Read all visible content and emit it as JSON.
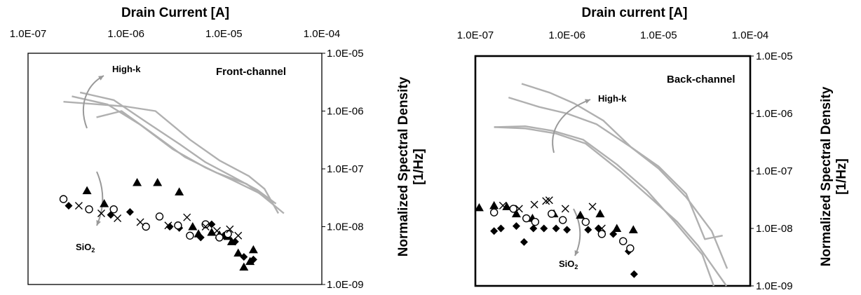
{
  "chart_data": [
    {
      "type": "scatter",
      "panel_label": "Front-channel",
      "xlabel": "Drain Current [A]",
      "ylabel_line1": "Normalized Spectral Density",
      "ylabel_line2": "[1/Hz]",
      "x_scale": "log",
      "y_scale": "log",
      "xlim": [
        1e-07,
        0.0001
      ],
      "ylim": [
        1e-09,
        1e-05
      ],
      "x_ticks": [
        "1.0E-07",
        "1.0E-06",
        "1.0E-05",
        "1.0E-04"
      ],
      "y_ticks": [
        "1.0E-05",
        "1.0E-06",
        "1.0E-07",
        "1.0E-08",
        "1.0E-09"
      ],
      "annotations": {
        "high_k": "High-k",
        "sio2_main": "SiO",
        "sio2_sub": "2"
      },
      "colors": {
        "highk_lines": "#b0b0b0",
        "arrow": "#999999",
        "markers": "#000000"
      },
      "high_k_lines": [
        {
          "x": [
            2.3e-07,
            1e-06,
            2e-06,
            4.5e-06,
            9e-06,
            1.8e-05,
            2.6e-05,
            3.6e-05
          ],
          "y": [
            1.45e-06,
            1.2e-06,
            1e-06,
            3.2e-07,
            1.4e-07,
            7.5e-08,
            4.5e-08,
            1.7e-08
          ]
        },
        {
          "x": [
            3.4e-07,
            7.5e-07,
            1.6e-06,
            3.5e-06,
            6.5e-06,
            1.2e-05,
            2.2e-05,
            3.4e-05
          ],
          "y": [
            2.1e-06,
            1.55e-06,
            6.5e-07,
            2.7e-07,
            1.3e-07,
            7.5e-08,
            4.3e-08,
            2.5e-08
          ]
        },
        {
          "x": [
            2.8e-07,
            6.5e-07,
            1.4e-06,
            3e-06,
            6.5e-06,
            1.2e-05,
            2.3e-05,
            4.1e-05
          ],
          "y": [
            1.8e-06,
            1.3e-06,
            5.8e-07,
            2.2e-07,
            1.05e-07,
            6.5e-08,
            3.8e-08,
            1.7e-08
          ]
        },
        {
          "x": [
            5e-07,
            9e-07,
            1.8e-06,
            4e-06,
            8.5e-06,
            1.7e-05,
            3.1e-05
          ],
          "y": [
            7.8e-07,
            1e-06,
            4.3e-07,
            1.6e-07,
            8.5e-08,
            5.5e-08,
            2.6e-08
          ]
        }
      ],
      "series": [
        {
          "name": "",
          "marker": "triangle",
          "x": [
            4e-07,
            6e-07,
            1.3e-06,
            2.1e-06,
            3.5e-06,
            4.8e-06,
            5.5e-06,
            7.5e-06,
            9e-06,
            1.1e-05,
            1.2e-05,
            1.4e-05,
            1.6e-05,
            1.85e-05,
            2e-05
          ],
          "y": [
            4.2e-08,
            2.5e-08,
            5.8e-08,
            5.8e-08,
            4e-08,
            1e-08,
            7.5e-09,
            8e-09,
            7.2e-09,
            6.8e-09,
            5.5e-09,
            3.5e-09,
            2e-09,
            2.5e-09,
            4e-09
          ]
        },
        {
          "name": "",
          "marker": "diamond",
          "x": [
            2.6e-07,
            7e-07,
            1.1e-06,
            2.8e-06,
            3.5e-06,
            5.8e-06,
            7.5e-06,
            1e-05,
            1.3e-05,
            1.6e-05,
            2e-05
          ],
          "y": [
            2.3e-08,
            1.6e-08,
            1.8e-08,
            1e-08,
            9.5e-09,
            6.5e-09,
            1.1e-08,
            7e-09,
            5.5e-09,
            3e-09,
            2.7e-09
          ]
        },
        {
          "name": "",
          "marker": "circle",
          "x": [
            2.3e-07,
            4.2e-07,
            7.5e-07,
            1.6e-06,
            2.2e-06,
            3.4e-06,
            4.5e-06,
            6.5e-06,
            9e-06,
            1.1e-05
          ],
          "y": [
            3e-08,
            2e-08,
            2e-08,
            1e-08,
            1.5e-08,
            1.05e-08,
            7e-09,
            1.1e-08,
            6.5e-09,
            7.5e-09
          ]
        },
        {
          "name": "",
          "marker": "cross",
          "x": [
            3.3e-07,
            5.6e-07,
            8.2e-07,
            1.4e-06,
            2.7e-06,
            4.2e-06,
            6.5e-06,
            8.5e-06,
            1.15e-05,
            1.4e-05
          ],
          "y": [
            2.3e-08,
            1.7e-08,
            1.4e-08,
            1.2e-08,
            1.05e-08,
            1.45e-08,
            1e-08,
            8.5e-09,
            9e-09,
            7e-09
          ]
        }
      ]
    },
    {
      "type": "scatter",
      "panel_label": "Back-channel",
      "xlabel": "Drain current [A]",
      "ylabel_line1": "Normalized Spectral Density",
      "ylabel_line2": "[1/Hz]",
      "x_scale": "log",
      "y_scale": "log",
      "xlim": [
        1e-07,
        0.0001
      ],
      "ylim": [
        1e-09,
        1e-05
      ],
      "x_ticks": [
        "1.0E-07",
        "1.0E-06",
        "1.0E-05",
        "1.0E-04"
      ],
      "y_ticks": [
        "1.0E-05",
        "1.0E-06",
        "1.0E-07",
        "1.0E-08",
        "1.0E-09"
      ],
      "annotations": {
        "high_k": "High-k",
        "sio2_main": "SiO",
        "sio2_sub": "2"
      },
      "colors": {
        "highk_lines": "#b0b0b0",
        "arrow": "#999999",
        "markers": "#000000"
      },
      "high_k_lines": [
        {
          "x": [
            3.2e-07,
            6.5e-07,
            1.2e-06,
            2.5e-06,
            5e-06,
            1e-05,
            2e-05,
            3.8e-05,
            5.6e-05
          ],
          "y": [
            3.3e-06,
            2.3e-06,
            1.5e-06,
            7.5e-07,
            2.6e-07,
            1.1e-07,
            3.5e-08,
            9e-09,
            2e-09
          ]
        },
        {
          "x": [
            2.3e-07,
            5e-07,
            1e-06,
            2.1e-06,
            5e-06,
            1e-05,
            2e-05,
            3.2e-05,
            5e-05
          ],
          "y": [
            1.9e-06,
            1.3e-06,
            1e-06,
            6.5e-07,
            2.6e-07,
            1.2e-07,
            4e-08,
            6.5e-09,
            7.5e-09
          ]
        },
        {
          "x": [
            1.6e-07,
            3.5e-07,
            7e-07,
            1.5e-06,
            3.5e-06,
            7.5e-06,
            1.5e-05,
            3e-05,
            4e-05
          ],
          "y": [
            5.8e-07,
            6e-07,
            5e-07,
            3.5e-07,
            1.3e-07,
            4.5e-08,
            1.3e-08,
            3.5e-09,
            1e-09
          ]
        },
        {
          "x": [
            1.6e-07,
            3.5e-07,
            7.5e-07,
            1.6e-06,
            3.8e-06,
            8e-06,
            1.6e-05,
            2.7e-05,
            5.5e-05
          ],
          "y": [
            5.8e-07,
            5.5e-07,
            4.5e-07,
            3e-07,
            1e-07,
            3.5e-08,
            1.3e-08,
            5e-09,
            1e-09
          ]
        }
      ],
      "series": [
        {
          "name": "",
          "marker": "triangle",
          "x": [
            1.1e-07,
            1.6e-07,
            2.2e-07,
            2.8e-07,
            4.2e-07,
            7.2e-07,
            1.4e-06,
            2.3e-06,
            3.5e-06,
            5.3e-06
          ],
          "y": [
            2.3e-08,
            2.5e-08,
            2.4e-08,
            1.8e-08,
            1.5e-08,
            1.8e-08,
            1.7e-08,
            1.8e-08,
            1e-08,
            9.5e-09
          ]
        },
        {
          "name": "",
          "marker": "diamond",
          "x": [
            1.6e-07,
            1.9e-07,
            2.8e-07,
            3.4e-07,
            4.3e-07,
            5.6e-07,
            7.6e-07,
            1e-06,
            1.7e-06,
            2.2e-06,
            3.2e-06,
            4.7e-06,
            5.4e-06
          ],
          "y": [
            9e-09,
            1e-08,
            1.1e-08,
            5.8e-09,
            1e-08,
            1e-08,
            1e-08,
            9.5e-09,
            9.5e-09,
            1e-08,
            8e-09,
            4e-09,
            1.6e-09
          ]
        },
        {
          "name": "",
          "marker": "circle",
          "x": [
            1.6e-07,
            2.6e-07,
            3.6e-07,
            4.5e-07,
            6.8e-07,
            9e-07,
            1.6e-06,
            2.4e-06,
            4.1e-06,
            4.9e-06
          ],
          "y": [
            1.9e-08,
            2.2e-08,
            1.5e-08,
            1.3e-08,
            1.8e-08,
            1.4e-08,
            1.3e-08,
            8e-09,
            6e-09,
            4.5e-09
          ]
        },
        {
          "name": "",
          "marker": "cross",
          "x": [
            2e-07,
            3e-07,
            4.4e-07,
            5.9e-07,
            6.4e-07,
            9.6e-07,
            1.9e-06,
            2.4e-06
          ],
          "y": [
            2.5e-08,
            2.2e-08,
            2.6e-08,
            3e-08,
            3.1e-08,
            2.2e-08,
            2.4e-08,
            1e-08
          ]
        }
      ]
    }
  ]
}
